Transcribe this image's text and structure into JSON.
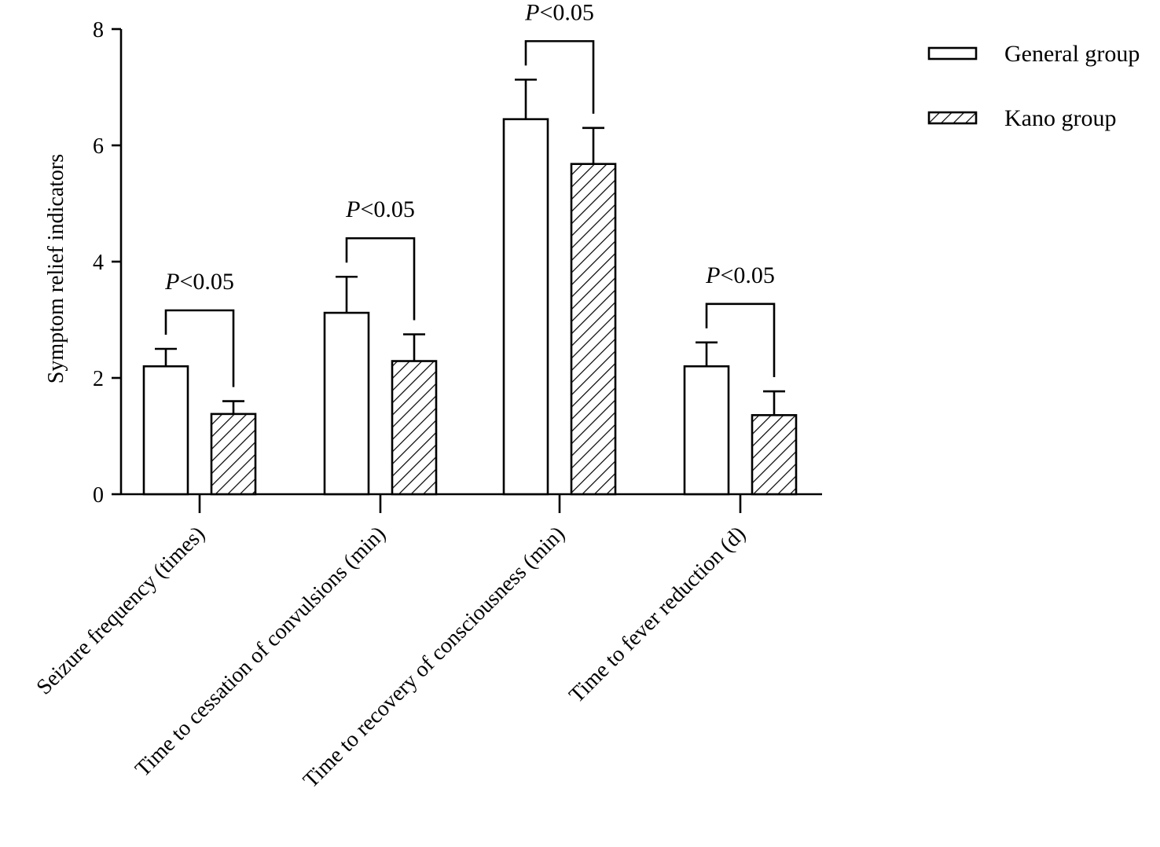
{
  "chart_data": {
    "type": "bar",
    "ylabel": "Symptom relief indicators",
    "ylim": [
      0,
      8
    ],
    "yticks": [
      0,
      2,
      4,
      6,
      8
    ],
    "categories": [
      "Seizure frequency (times)",
      "Time to cessation of convulsions (min)",
      "Time to recovery of consciousness (min)",
      "Time to fever reduction (d)"
    ],
    "series": [
      {
        "name": "General group",
        "pattern": "none",
        "values": [
          2.2,
          3.12,
          6.45,
          2.2
        ],
        "errors": [
          0.3,
          0.62,
          0.68,
          0.41
        ]
      },
      {
        "name": "Kano group",
        "pattern": "hatch",
        "values": [
          1.38,
          2.29,
          5.68,
          1.36
        ],
        "errors": [
          0.22,
          0.46,
          0.62,
          0.41
        ]
      }
    ],
    "significance": [
      {
        "category": 0,
        "prefix": "P",
        "text": "<0.05"
      },
      {
        "category": 1,
        "prefix": "P",
        "text": "<0.05"
      },
      {
        "category": 2,
        "prefix": "P",
        "text": "<0.05"
      },
      {
        "category": 3,
        "prefix": "P",
        "text": "<0.05"
      }
    ],
    "legend_position": "top-right",
    "grid": false,
    "colors": {
      "bar_fill": "#ffffff",
      "stroke": "#000000",
      "hatch": "#000000"
    }
  }
}
